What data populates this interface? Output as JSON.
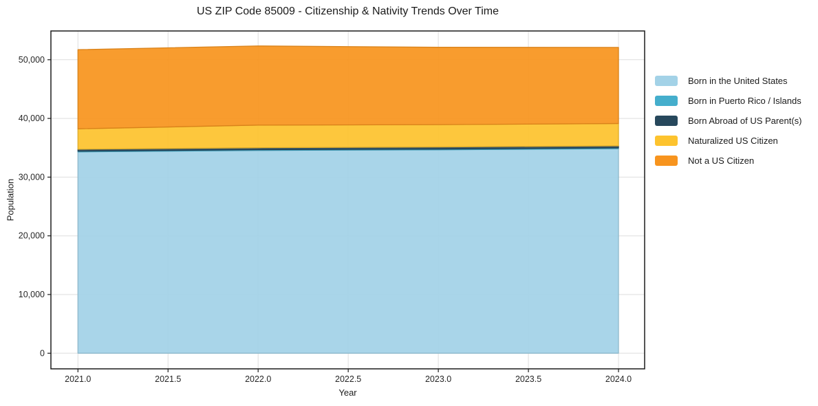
{
  "chart_data": {
    "type": "area",
    "stacked": true,
    "title": "US ZIP Code 85009 - Citizenship & Nativity Trends Over Time",
    "xlabel": "Year",
    "ylabel": "Population",
    "x": [
      2021,
      2022,
      2023,
      2024
    ],
    "series": [
      {
        "name": "Born in the United States",
        "color": "#a3d2e7",
        "values": [
          34300,
          34550,
          34650,
          34850
        ]
      },
      {
        "name": "Born in Puerto Rico / Islands",
        "color": "#45aecc",
        "values": [
          130,
          130,
          140,
          140
        ]
      },
      {
        "name": "Born Abroad of US Parent(s)",
        "color": "#27485c",
        "values": [
          320,
          330,
          350,
          340
        ]
      },
      {
        "name": "Naturalized US Citizen",
        "color": "#fdc32e",
        "values": [
          3480,
          3850,
          3800,
          3800
        ]
      },
      {
        "name": "Not a US Citizen",
        "color": "#f7941e",
        "values": [
          13480,
          13490,
          13180,
          12970
        ]
      }
    ],
    "totals": [
      51710,
      52350,
      52120,
      52100
    ],
    "xticks": [
      2021.0,
      2021.5,
      2022.0,
      2022.5,
      2023.0,
      2023.5,
      2024.0
    ],
    "yticks": [
      0,
      10000,
      20000,
      30000,
      40000,
      50000
    ],
    "xlim": [
      2020.85,
      2024.145
    ],
    "ylim": [
      -2660,
      54900
    ],
    "grid": true,
    "legend_position": "right-outside",
    "colors": {
      "grid": "#dedede",
      "spine": "#1a1a1a",
      "tick_label": "#262626",
      "background": "#ffffff"
    }
  }
}
